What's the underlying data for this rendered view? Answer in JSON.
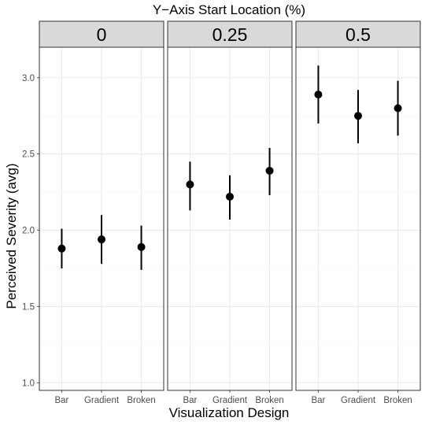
{
  "chart_data": {
    "type": "scatter",
    "title": "Y−Axis Start Location (%)",
    "xlabel": "Visualization Design",
    "ylabel": "Perceived Severity (avg)",
    "ylim": [
      0.95,
      3.2
    ],
    "y_ticks": [
      "1.0",
      "1.5",
      "2.0",
      "2.5",
      "3.0"
    ],
    "categories": [
      "Bar",
      "Gradient",
      "Broken"
    ],
    "grid": true,
    "panels": [
      {
        "label": "0",
        "points": [
          {
            "x": "Bar",
            "y": 1.88,
            "low": 1.75,
            "high": 2.01
          },
          {
            "x": "Gradient",
            "y": 1.94,
            "low": 1.78,
            "high": 2.1
          },
          {
            "x": "Broken",
            "y": 1.89,
            "low": 1.74,
            "high": 2.03
          }
        ]
      },
      {
        "label": "0.25",
        "points": [
          {
            "x": "Bar",
            "y": 2.3,
            "low": 2.13,
            "high": 2.45
          },
          {
            "x": "Gradient",
            "y": 2.22,
            "low": 2.07,
            "high": 2.36
          },
          {
            "x": "Broken",
            "y": 2.39,
            "low": 2.23,
            "high": 2.54
          }
        ]
      },
      {
        "label": "0.5",
        "points": [
          {
            "x": "Bar",
            "y": 2.89,
            "low": 2.7,
            "high": 3.08
          },
          {
            "x": "Gradient",
            "y": 2.75,
            "low": 2.57,
            "high": 2.92
          },
          {
            "x": "Broken",
            "y": 2.8,
            "low": 2.62,
            "high": 2.98
          }
        ]
      }
    ],
    "colors": {
      "point": "#000000",
      "strip_fill": "#d9d9d9",
      "panel_border": "#333333",
      "grid_major": "#ebebeb",
      "grid_minor": "#f5f5f5",
      "tick_label": "#4d4d4d",
      "text": "#000000"
    }
  }
}
